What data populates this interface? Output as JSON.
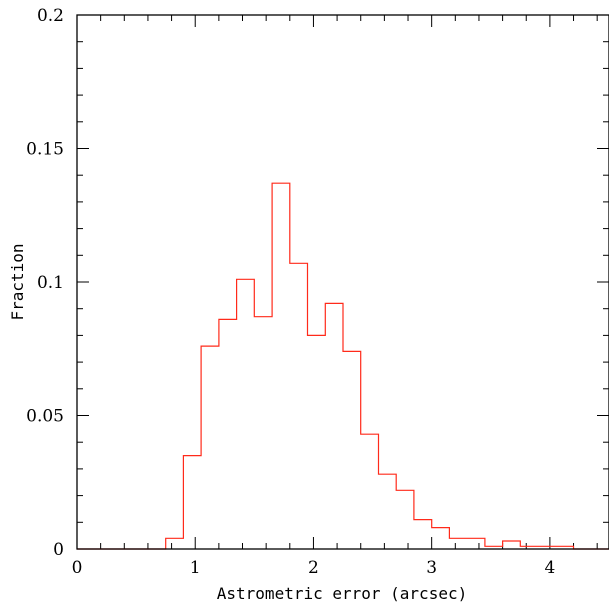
{
  "chart_data": {
    "type": "histogram",
    "title": "",
    "xlabel": "Astrometric error (arcsec)",
    "ylabel": "Fraction",
    "xlim": [
      0,
      4.5
    ],
    "ylim": [
      0,
      0.2
    ],
    "xticks": [
      0,
      1,
      2,
      3,
      4
    ],
    "yticks": [
      0,
      0.05,
      0.1,
      0.15,
      0.2
    ],
    "xtick_labels": [
      "0",
      "1",
      "2",
      "3",
      "4"
    ],
    "ytick_labels": [
      "0",
      "0.05",
      "0.1",
      "0.15",
      "0.2"
    ],
    "grid": false,
    "legend": false,
    "series_color": "#ff2a1a",
    "bin_width": 0.15,
    "bin_edges": [
      0,
      0.15,
      0.3,
      0.45,
      0.6,
      0.75,
      0.9,
      1.05,
      1.2,
      1.35,
      1.5,
      1.65,
      1.8,
      1.95,
      2.1,
      2.25,
      2.4,
      2.55,
      2.7,
      2.85,
      3.0,
      3.15,
      3.3,
      3.45,
      3.6,
      3.75,
      3.9,
      4.05,
      4.2,
      4.35,
      4.5
    ],
    "values": [
      0,
      0,
      0,
      0,
      0,
      0.004,
      0.035,
      0.076,
      0.086,
      0.101,
      0.087,
      0.137,
      0.107,
      0.08,
      0.092,
      0.074,
      0.043,
      0.028,
      0.022,
      0.011,
      0.008,
      0.004,
      0.004,
      0.001,
      0.003,
      0.001,
      0.001,
      0.001,
      0,
      0
    ]
  }
}
